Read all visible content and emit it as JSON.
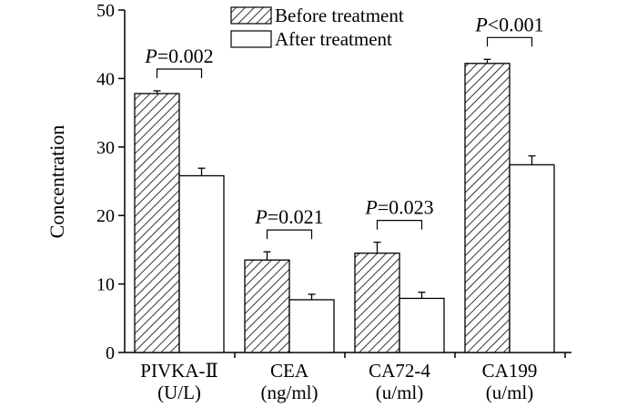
{
  "chart_data": {
    "type": "bar",
    "ylabel": "Concentration",
    "ylim": [
      0,
      50
    ],
    "yticks": [
      0,
      10,
      20,
      30,
      40,
      50
    ],
    "legend_position": "top-center",
    "categories": [
      {
        "name": "PIVKA-Ⅱ",
        "unit": "(U/L)"
      },
      {
        "name": "CEA",
        "unit": "(ng/ml)"
      },
      {
        "name": "CA72-4",
        "unit": "(u/ml)"
      },
      {
        "name": "CA199",
        "unit": "(u/ml)"
      }
    ],
    "series": [
      {
        "name": "Before treatment",
        "fill": "hatched",
        "values": [
          37.8,
          13.5,
          14.5,
          42.2
        ],
        "errors": [
          0.4,
          1.2,
          1.6,
          0.6
        ]
      },
      {
        "name": "After treatment",
        "fill": "white",
        "values": [
          25.8,
          7.7,
          7.9,
          27.4
        ],
        "errors": [
          1.1,
          0.8,
          0.9,
          1.3
        ]
      }
    ],
    "annotations": [
      {
        "category": 0,
        "p_symbol": "P",
        "p_text": "=0.002"
      },
      {
        "category": 1,
        "p_symbol": "P",
        "p_text": "=0.021"
      },
      {
        "category": 2,
        "p_symbol": "P",
        "p_text": "=0.023"
      },
      {
        "category": 3,
        "p_symbol": "P",
        "p_text": "<0.001"
      }
    ],
    "colors": {
      "stroke": "#000000",
      "background": "#ffffff"
    }
  }
}
